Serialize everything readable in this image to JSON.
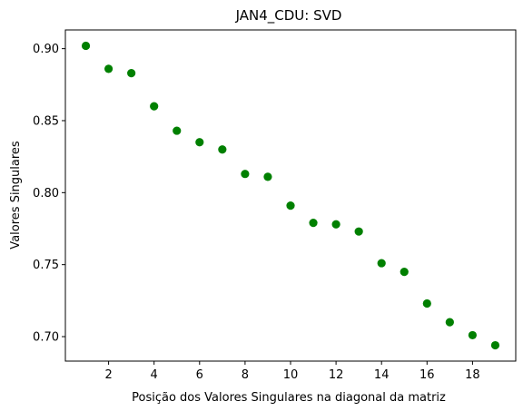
{
  "chart_data": {
    "type": "scatter",
    "title": "JAN4_CDU: SVD",
    "xlabel": "Posição dos Valores Singulares na diagonal da matriz",
    "ylabel": "Valores Singulares",
    "xlim": [
      0.1,
      19.9
    ],
    "ylim": [
      0.683,
      0.913
    ],
    "xticks": [
      2,
      4,
      6,
      8,
      10,
      12,
      14,
      16,
      18
    ],
    "xtick_labels": [
      "2",
      "4",
      "6",
      "8",
      "10",
      "12",
      "14",
      "16",
      "18"
    ],
    "yticks": [
      0.7,
      0.75,
      0.8,
      0.85,
      0.9
    ],
    "ytick_labels": [
      "0.70",
      "0.75",
      "0.80",
      "0.85",
      "0.90"
    ],
    "grid": false,
    "marker_color": "#008000",
    "series": [
      {
        "x": [
          1,
          2,
          3,
          4,
          5,
          6,
          7,
          8,
          9,
          10,
          11,
          12,
          13,
          14,
          15,
          16,
          17,
          18,
          19
        ],
        "y": [
          0.902,
          0.886,
          0.883,
          0.86,
          0.843,
          0.835,
          0.83,
          0.813,
          0.811,
          0.791,
          0.779,
          0.778,
          0.773,
          0.751,
          0.745,
          0.723,
          0.71,
          0.701,
          0.694
        ]
      }
    ]
  }
}
